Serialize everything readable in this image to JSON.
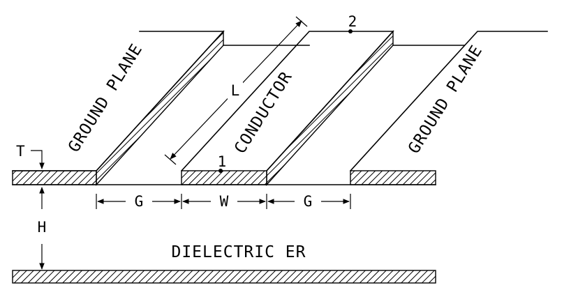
{
  "labels": {
    "ground_plane_left": "GROUND PLANE",
    "ground_plane_right": "GROUND PLANE",
    "conductor": "CONDUCTOR",
    "dielectric": "DIELECTRIC ER",
    "length": "L",
    "thickness": "T",
    "height": "H",
    "gap_left": "G",
    "width": "W",
    "gap_right": "G",
    "port_1": "1",
    "port_2": "2"
  }
}
